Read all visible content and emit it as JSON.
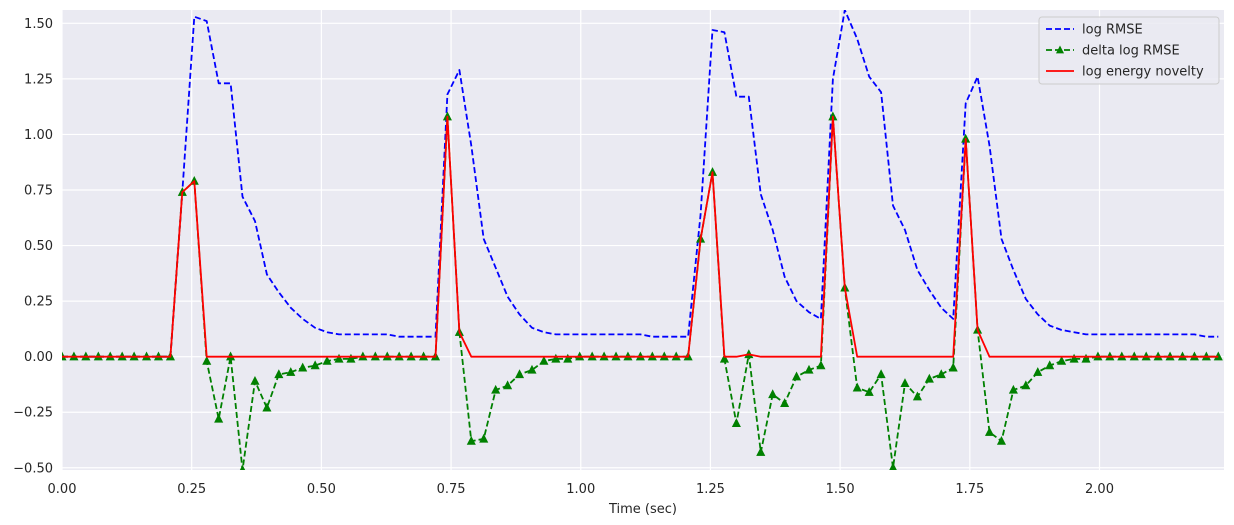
{
  "chart_data": {
    "type": "line",
    "title": "",
    "xlabel": "Time (sec)",
    "ylabel": "",
    "xlim": [
      0,
      2.24
    ],
    "ylim": [
      -0.51,
      1.56
    ],
    "x_ticks": [
      0.0,
      0.25,
      0.5,
      0.75,
      1.0,
      1.25,
      1.5,
      1.75,
      2.0
    ],
    "x_tick_labels": [
      "0.00",
      "0.25",
      "0.50",
      "0.75",
      "1.00",
      "1.25",
      "1.50",
      "1.75",
      "2.00"
    ],
    "y_ticks": [
      -0.5,
      -0.25,
      0.0,
      0.25,
      0.5,
      0.75,
      1.0,
      1.25,
      1.5
    ],
    "y_tick_labels": [
      "−0.50",
      "−0.25",
      "0.00",
      "0.25",
      "0.50",
      "0.75",
      "1.00",
      "1.25",
      "1.50"
    ],
    "grid": true,
    "legend_position": "top-right",
    "series": [
      {
        "name": "log RMSE",
        "color": "#0000ff",
        "style": "dashed",
        "marker": "none",
        "x": [
          0,
          0.023,
          0.046,
          0.07,
          0.093,
          0.116,
          0.139,
          0.163,
          0.186,
          0.209,
          0.232,
          0.255,
          0.279,
          0.302,
          0.325,
          0.348,
          0.372,
          0.395,
          0.418,
          0.441,
          0.464,
          0.488,
          0.511,
          0.534,
          0.557,
          0.58,
          0.604,
          0.627,
          0.65,
          0.673,
          0.697,
          0.72,
          0.743,
          0.766,
          0.789,
          0.813,
          0.836,
          0.859,
          0.882,
          0.906,
          0.929,
          0.952,
          0.975,
          0.998,
          1.022,
          1.045,
          1.068,
          1.091,
          1.115,
          1.138,
          1.161,
          1.184,
          1.207,
          1.231,
          1.254,
          1.277,
          1.3,
          1.324,
          1.347,
          1.37,
          1.393,
          1.416,
          1.44,
          1.463,
          1.486,
          1.509,
          1.533,
          1.556,
          1.579,
          1.602,
          1.625,
          1.649,
          1.672,
          1.695,
          1.718,
          1.742,
          1.765,
          1.788,
          1.811,
          1.834,
          1.858,
          1.881,
          1.904,
          1.927,
          1.951,
          1.974,
          1.997,
          2.02,
          2.043,
          2.067,
          2.09,
          2.113,
          2.136,
          2.16,
          2.183,
          2.206,
          2.229
        ],
        "y": [
          0,
          0,
          0,
          0,
          0,
          0,
          0,
          0,
          0,
          0,
          0.74,
          1.53,
          1.51,
          1.23,
          1.23,
          0.72,
          0.61,
          0.37,
          0.29,
          0.22,
          0.17,
          0.13,
          0.11,
          0.1,
          0.1,
          0.1,
          0.1,
          0.1,
          0.09,
          0.09,
          0.09,
          0.09,
          1.18,
          1.29,
          0.95,
          0.53,
          0.4,
          0.27,
          0.19,
          0.13,
          0.11,
          0.1,
          0.1,
          0.1,
          0.1,
          0.1,
          0.1,
          0.1,
          0.1,
          0.09,
          0.09,
          0.09,
          0.09,
          0.64,
          1.47,
          1.46,
          1.17,
          1.17,
          0.73,
          0.57,
          0.36,
          0.25,
          0.2,
          0.17,
          1.25,
          1.56,
          1.43,
          1.26,
          1.19,
          0.68,
          0.57,
          0.39,
          0.3,
          0.22,
          0.17,
          1.14,
          1.26,
          0.95,
          0.53,
          0.39,
          0.26,
          0.19,
          0.14,
          0.12,
          0.11,
          0.1,
          0.1,
          0.1,
          0.1,
          0.1,
          0.1,
          0.1,
          0.1,
          0.1,
          0.1,
          0.09,
          0.09
        ]
      },
      {
        "name": "delta log RMSE",
        "color": "#008000",
        "style": "dashed",
        "marker": "triangle",
        "x": [
          0,
          0.023,
          0.046,
          0.07,
          0.093,
          0.116,
          0.139,
          0.163,
          0.186,
          0.209,
          0.232,
          0.255,
          0.279,
          0.302,
          0.325,
          0.348,
          0.372,
          0.395,
          0.418,
          0.441,
          0.464,
          0.488,
          0.511,
          0.534,
          0.557,
          0.58,
          0.604,
          0.627,
          0.65,
          0.673,
          0.697,
          0.72,
          0.743,
          0.766,
          0.789,
          0.813,
          0.836,
          0.859,
          0.882,
          0.906,
          0.929,
          0.952,
          0.975,
          0.998,
          1.022,
          1.045,
          1.068,
          1.091,
          1.115,
          1.138,
          1.161,
          1.184,
          1.207,
          1.231,
          1.254,
          1.277,
          1.3,
          1.324,
          1.347,
          1.37,
          1.393,
          1.416,
          1.44,
          1.463,
          1.486,
          1.509,
          1.533,
          1.556,
          1.579,
          1.602,
          1.625,
          1.649,
          1.672,
          1.695,
          1.718,
          1.742,
          1.765,
          1.788,
          1.811,
          1.834,
          1.858,
          1.881,
          1.904,
          1.927,
          1.951,
          1.974,
          1.997,
          2.02,
          2.043,
          2.067,
          2.09,
          2.113,
          2.136,
          2.16,
          2.183,
          2.206,
          2.229
        ],
        "y": [
          0,
          0,
          0,
          0,
          0,
          0,
          0,
          0,
          0,
          0,
          0.74,
          0.79,
          -0.02,
          -0.28,
          0,
          -0.51,
          -0.11,
          -0.23,
          -0.08,
          -0.07,
          -0.05,
          -0.04,
          -0.02,
          -0.01,
          -0.01,
          0,
          0,
          0,
          0,
          0,
          0,
          0,
          1.08,
          0.11,
          -0.38,
          -0.37,
          -0.15,
          -0.13,
          -0.08,
          -0.06,
          -0.02,
          -0.01,
          -0.01,
          0,
          0,
          0,
          0,
          0,
          0,
          0,
          0,
          0,
          0,
          0.53,
          0.83,
          -0.01,
          -0.3,
          0.01,
          -0.43,
          -0.17,
          -0.21,
          -0.09,
          -0.06,
          -0.04,
          1.08,
          0.31,
          -0.14,
          -0.16,
          -0.08,
          -0.5,
          -0.12,
          -0.18,
          -0.1,
          -0.08,
          -0.05,
          0.98,
          0.12,
          -0.34,
          -0.38,
          -0.15,
          -0.13,
          -0.07,
          -0.04,
          -0.02,
          -0.01,
          -0.01,
          0,
          0,
          0,
          0,
          0,
          0,
          0,
          0,
          0,
          0,
          0
        ]
      },
      {
        "name": "log energy novelty",
        "color": "#ff0000",
        "style": "solid",
        "marker": "none",
        "x": [
          0,
          0.023,
          0.046,
          0.07,
          0.093,
          0.116,
          0.139,
          0.163,
          0.186,
          0.209,
          0.232,
          0.255,
          0.279,
          0.302,
          0.325,
          0.348,
          0.372,
          0.395,
          0.418,
          0.441,
          0.464,
          0.488,
          0.511,
          0.534,
          0.557,
          0.58,
          0.604,
          0.627,
          0.65,
          0.673,
          0.697,
          0.72,
          0.743,
          0.766,
          0.789,
          0.813,
          0.836,
          0.859,
          0.882,
          0.906,
          0.929,
          0.952,
          0.975,
          0.998,
          1.022,
          1.045,
          1.068,
          1.091,
          1.115,
          1.138,
          1.161,
          1.184,
          1.207,
          1.231,
          1.254,
          1.277,
          1.3,
          1.324,
          1.347,
          1.37,
          1.393,
          1.416,
          1.44,
          1.463,
          1.486,
          1.509,
          1.533,
          1.556,
          1.579,
          1.602,
          1.625,
          1.649,
          1.672,
          1.695,
          1.718,
          1.742,
          1.765,
          1.788,
          1.811,
          1.834,
          1.858,
          1.881,
          1.904,
          1.927,
          1.951,
          1.974,
          1.997,
          2.02,
          2.043,
          2.067,
          2.09,
          2.113,
          2.136,
          2.16,
          2.183,
          2.206,
          2.229
        ],
        "y": [
          0,
          0,
          0,
          0,
          0,
          0,
          0,
          0,
          0,
          0,
          0.74,
          0.79,
          0,
          0,
          0,
          0,
          0,
          0,
          0,
          0,
          0,
          0,
          0,
          0,
          0,
          0,
          0,
          0,
          0,
          0,
          0,
          0,
          1.08,
          0.11,
          0,
          0,
          0,
          0,
          0,
          0,
          0,
          0,
          0,
          0,
          0,
          0,
          0,
          0,
          0,
          0,
          0,
          0,
          0,
          0.53,
          0.83,
          0,
          0,
          0.01,
          0,
          0,
          0,
          0,
          0,
          0,
          1.08,
          0.31,
          0,
          0,
          0,
          0,
          0,
          0,
          0,
          0,
          0,
          0.98,
          0.12,
          0,
          0,
          0,
          0,
          0,
          0,
          0,
          0,
          0,
          0,
          0,
          0,
          0,
          0,
          0,
          0,
          0,
          0,
          0,
          0
        ]
      }
    ]
  }
}
